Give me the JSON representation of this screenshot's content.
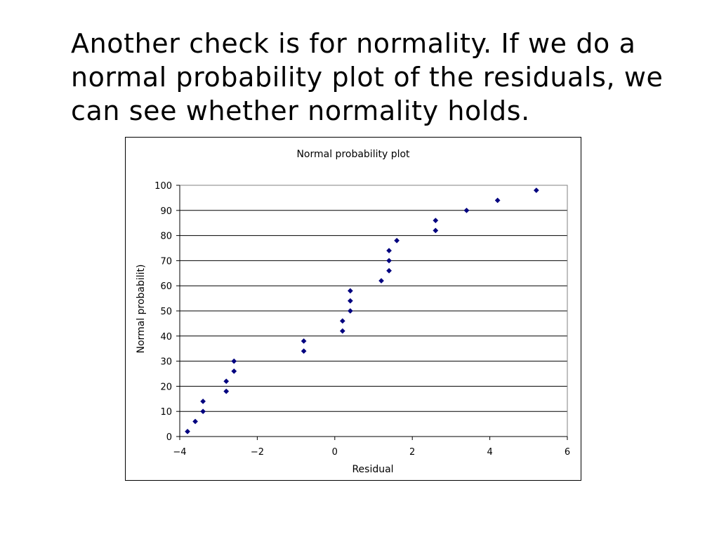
{
  "slide": {
    "text_lines": [
      "Another check is for normality. If we do a",
      "normal probability plot of the residuals, we",
      "can see whether normality holds."
    ]
  },
  "chart_data": {
    "type": "scatter",
    "title": "Normal probability plot",
    "xlabel": "Residual",
    "ylabel": "Normal probabilit)",
    "xlim": [
      -4,
      6
    ],
    "ylim": [
      0,
      100
    ],
    "x_ticks": [
      -4,
      -2,
      0,
      2,
      4,
      6
    ],
    "y_ticks": [
      0,
      10,
      20,
      30,
      40,
      50,
      60,
      70,
      80,
      90,
      100
    ],
    "x_tick_labels": [
      "−4",
      "−2",
      "0",
      "2",
      "4",
      "6"
    ],
    "y_tick_labels": [
      "0",
      "10",
      "20",
      "30",
      "40",
      "50",
      "60",
      "70",
      "80",
      "90",
      "100"
    ],
    "grid": "horizontal",
    "marker_color": "#00007F",
    "marker_shape": "diamond",
    "series": [
      {
        "points": [
          {
            "x": -3.8,
            "y": 2
          },
          {
            "x": -3.6,
            "y": 6
          },
          {
            "x": -3.4,
            "y": 10
          },
          {
            "x": -3.4,
            "y": 14
          },
          {
            "x": -2.8,
            "y": 18
          },
          {
            "x": -2.8,
            "y": 22
          },
          {
            "x": -2.6,
            "y": 26
          },
          {
            "x": -2.6,
            "y": 30
          },
          {
            "x": -0.8,
            "y": 34
          },
          {
            "x": -0.8,
            "y": 38
          },
          {
            "x": 0.2,
            "y": 42
          },
          {
            "x": 0.2,
            "y": 46
          },
          {
            "x": 0.4,
            "y": 50
          },
          {
            "x": 0.4,
            "y": 54
          },
          {
            "x": 0.4,
            "y": 58
          },
          {
            "x": 1.2,
            "y": 62
          },
          {
            "x": 1.4,
            "y": 66
          },
          {
            "x": 1.4,
            "y": 70
          },
          {
            "x": 1.4,
            "y": 74
          },
          {
            "x": 1.6,
            "y": 78
          },
          {
            "x": 2.6,
            "y": 82
          },
          {
            "x": 2.6,
            "y": 86
          },
          {
            "x": 3.4,
            "y": 90
          },
          {
            "x": 4.2,
            "y": 94
          },
          {
            "x": 5.2,
            "y": 98
          }
        ]
      }
    ]
  }
}
